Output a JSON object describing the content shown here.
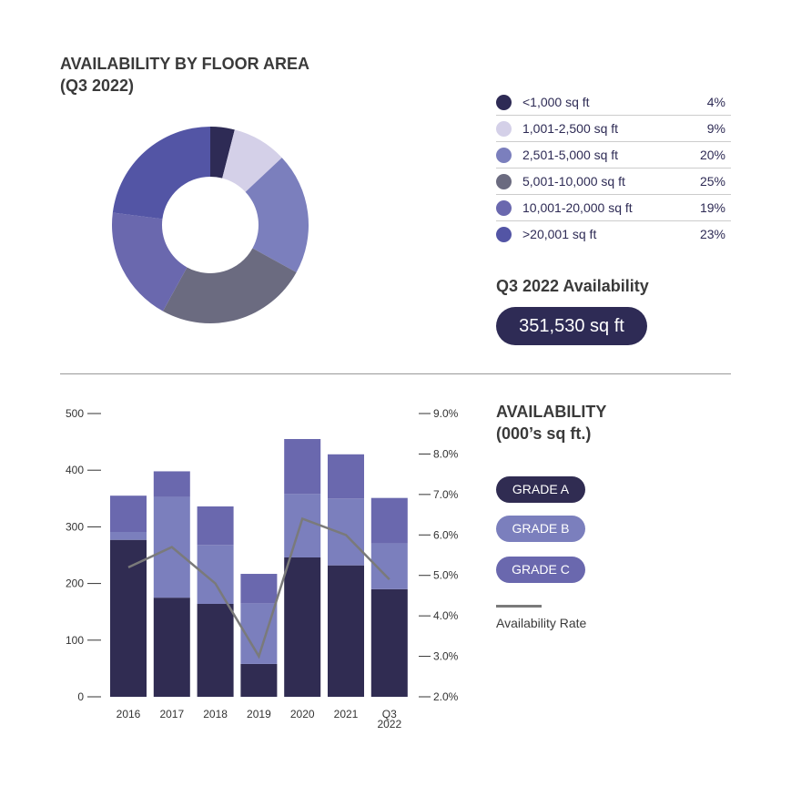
{
  "donut": {
    "title_line1": "AVAILABILITY BY FLOOR AREA",
    "title_line2": "(Q3 2022)",
    "legend": [
      {
        "label": "<1,000 sq ft",
        "value": "4%",
        "color": "#2e2b55"
      },
      {
        "label": "1,001-2,500 sq ft",
        "value": "9%",
        "color": "#d4d0e8"
      },
      {
        "label": "2,501-5,000 sq ft",
        "value": "20%",
        "color": "#7b7fbd"
      },
      {
        "label": "5,001-10,000 sq ft",
        "value": "25%",
        "color": "#6b6b80"
      },
      {
        "label": "10,001-20,000 sq ft",
        "value": "19%",
        "color": "#6a68ae"
      },
      {
        "label": ">20,001 sq ft",
        "value": "23%",
        "color": "#5355a5"
      }
    ],
    "availability_label": "Q3 2022 Availability",
    "availability_value": "351,530 sq ft"
  },
  "bars": {
    "title_line1": "AVAILABILITY",
    "title_line2": "(000’s sq ft.)",
    "legend": [
      {
        "label": "GRADE A",
        "color": "#302c52"
      },
      {
        "label": "GRADE B",
        "color": "#7b7fbd"
      },
      {
        "label": "GRADE C",
        "color": "#6a68ae"
      }
    ],
    "rate_label": "Availability Rate",
    "rate_color": "#7a7a7a"
  },
  "chart_data": [
    {
      "type": "pie",
      "title": "AVAILABILITY BY FLOOR AREA (Q3 2022)",
      "categories": [
        "<1,000 sq ft",
        "1,001-2,500 sq ft",
        "2,501-5,000 sq ft",
        "5,001-10,000 sq ft",
        "10,001-20,000 sq ft",
        ">20,001 sq ft"
      ],
      "values": [
        4,
        9,
        20,
        25,
        19,
        23
      ],
      "donut": true
    },
    {
      "type": "bar",
      "stacked": true,
      "title": "AVAILABILITY (000’s sq ft.)",
      "categories": [
        "2016",
        "2017",
        "2018",
        "2019",
        "2020",
        "2021",
        "Q3 2022"
      ],
      "category_lines": [
        [
          "2016"
        ],
        [
          "2017"
        ],
        [
          "2018"
        ],
        [
          "2019"
        ],
        [
          "2020"
        ],
        [
          "2021"
        ],
        [
          "Q3",
          "2022"
        ]
      ],
      "series": [
        {
          "name": "GRADE A",
          "values": [
            277,
            175,
            164,
            58,
            246,
            232,
            190
          ]
        },
        {
          "name": "GRADE B",
          "values": [
            14,
            178,
            104,
            107,
            112,
            118,
            81
          ]
        },
        {
          "name": "GRADE C",
          "values": [
            64,
            45,
            68,
            52,
            97,
            78,
            80
          ]
        }
      ],
      "line_series": {
        "name": "Availability Rate",
        "axis": "right",
        "values": [
          5.2,
          5.7,
          4.8,
          3.0,
          6.4,
          6.0,
          4.9
        ]
      },
      "ylim": [
        0,
        500
      ],
      "yticks": [
        "0",
        "100",
        "200",
        "300",
        "400",
        "500"
      ],
      "y2lim": [
        2.0,
        9.0
      ],
      "y2ticks": [
        "2.0%",
        "3.0%",
        "4.0%",
        "5.0%",
        "6.0%",
        "7.0%",
        "8.0%",
        "9.0%"
      ],
      "grid": false,
      "legend": "right"
    }
  ]
}
